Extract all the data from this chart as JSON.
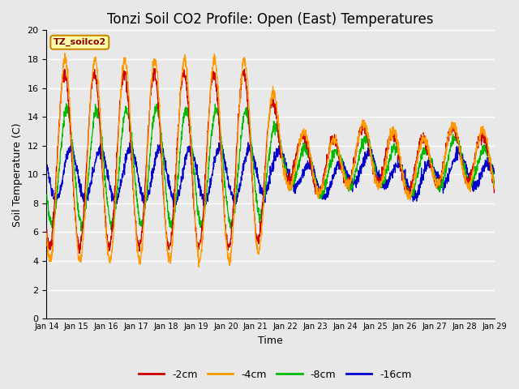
{
  "title": "Tonzi Soil CO2 Profile: Open (East) Temperatures",
  "xlabel": "Time",
  "ylabel": "Soil Temperature (C)",
  "ylim": [
    0,
    20
  ],
  "yticks": [
    0,
    2,
    4,
    6,
    8,
    10,
    12,
    14,
    16,
    18,
    20
  ],
  "xtick_labels": [
    "Jan 14",
    "Jan 15",
    "Jan 16",
    "Jan 17",
    "Jan 18",
    "Jan 19",
    "Jan 20",
    "Jan 21",
    "Jan 22",
    "Jan 23",
    "Jan 24",
    "Jan 25",
    "Jan 26",
    "Jan 27",
    "Jan 28",
    "Jan 29"
  ],
  "legend_label": "TZ_soilco2",
  "series_labels": [
    "-2cm",
    "-4cm",
    "-8cm",
    "-16cm"
  ],
  "series_colors": [
    "#cc0000",
    "#ff9900",
    "#00bb00",
    "#0000cc"
  ],
  "plot_bg_color": "#e8e8e8",
  "grid_color": "#ffffff",
  "title_fontsize": 12,
  "axis_fontsize": 9,
  "tick_fontsize": 8
}
